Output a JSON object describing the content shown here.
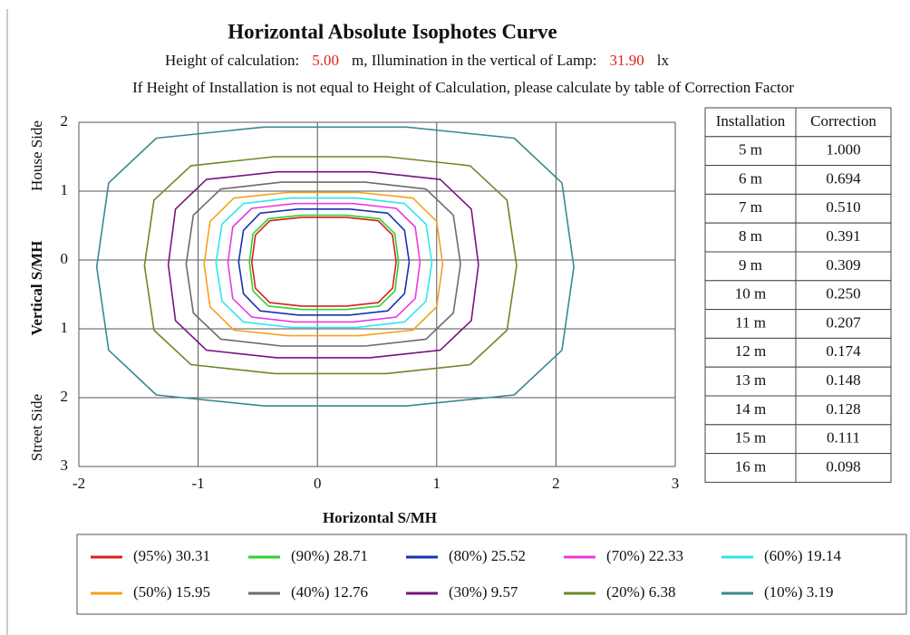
{
  "chart_data": {
    "type": "contour",
    "title": "Horizontal Absolute Isophotes Curve",
    "subtitle_parts": [
      "Height of calculation:",
      "5.00",
      "m, Illumination in the vertical of Lamp:",
      "31.90",
      "lx"
    ],
    "subtitle_highlight_color": "#e0201b",
    "note": "If Height of Installation is not equal to Height of Calculation, please calculate by table of Correction Factor",
    "x_label": "Horizontal S/MH",
    "y_label": "Vertical S/MH",
    "y_side_labels": [
      "House Side",
      "Street Side"
    ],
    "xlim": [
      -2,
      3
    ],
    "xticks": [
      -2,
      -1,
      0,
      1,
      2,
      3
    ],
    "ylim": [
      -3,
      2
    ],
    "yticks": [
      {
        "value": 2,
        "label": "2"
      },
      {
        "value": 1,
        "label": "1"
      },
      {
        "value": 0,
        "label": "0"
      },
      {
        "value": -1,
        "label": "1"
      },
      {
        "value": -2,
        "label": "2"
      },
      {
        "value": -3,
        "label": "3"
      }
    ],
    "grid": true,
    "series": [
      {
        "name": "(95%) 30.31",
        "color": "#d61f1f",
        "x": [
          0.66,
          0.63,
          0.51,
          0.24,
          -0.13,
          -0.4,
          -0.52,
          -0.55,
          -0.52,
          -0.4,
          -0.13,
          0.24,
          0.51,
          0.63,
          0.66
        ],
        "y": [
          -0.03,
          0.36,
          0.57,
          0.62,
          0.62,
          0.57,
          0.36,
          -0.03,
          -0.41,
          -0.62,
          -0.67,
          -0.67,
          -0.62,
          -0.41,
          -0.03
        ]
      },
      {
        "name": "(90%) 28.71",
        "color": "#2fd12f",
        "x": [
          0.68,
          0.65,
          0.52,
          0.24,
          -0.13,
          -0.41,
          -0.54,
          -0.57,
          -0.54,
          -0.41,
          -0.13,
          0.24,
          0.52,
          0.65,
          0.68
        ],
        "y": [
          -0.03,
          0.38,
          0.6,
          0.65,
          0.65,
          0.6,
          0.38,
          -0.03,
          -0.45,
          -0.67,
          -0.72,
          -0.72,
          -0.67,
          -0.45,
          -0.03
        ]
      },
      {
        "name": "(80%) 25.52",
        "color": "#1b2fb5",
        "x": [
          0.77,
          0.73,
          0.59,
          0.27,
          -0.16,
          -0.48,
          -0.62,
          -0.66,
          -0.62,
          -0.48,
          -0.16,
          0.27,
          0.59,
          0.73,
          0.77
        ],
        "y": [
          -0.03,
          0.43,
          0.68,
          0.74,
          0.74,
          0.68,
          0.43,
          -0.03,
          -0.49,
          -0.74,
          -0.8,
          -0.8,
          -0.74,
          -0.49,
          -0.03
        ]
      },
      {
        "name": "(70%) 22.33",
        "color": "#e83be0",
        "x": [
          0.86,
          0.82,
          0.66,
          0.3,
          -0.19,
          -0.55,
          -0.71,
          -0.75,
          -0.71,
          -0.55,
          -0.19,
          0.3,
          0.66,
          0.82,
          0.86
        ],
        "y": [
          -0.04,
          0.48,
          0.75,
          0.82,
          0.82,
          0.75,
          0.48,
          -0.04,
          -0.56,
          -0.83,
          -0.9,
          -0.9,
          -0.83,
          -0.56,
          -0.04
        ]
      },
      {
        "name": "(60%) 19.14",
        "color": "#2fe6ea",
        "x": [
          0.96,
          0.91,
          0.73,
          0.33,
          -0.22,
          -0.62,
          -0.8,
          -0.85,
          -0.8,
          -0.62,
          -0.22,
          0.33,
          0.73,
          0.91,
          0.96
        ],
        "y": [
          -0.04,
          0.52,
          0.82,
          0.9,
          0.9,
          0.82,
          0.52,
          -0.04,
          -0.6,
          -0.9,
          -0.98,
          -0.98,
          -0.9,
          -0.6,
          -0.04
        ]
      },
      {
        "name": "(50%) 15.95",
        "color": "#f5a21b",
        "x": [
          1.05,
          1.0,
          0.8,
          0.35,
          -0.25,
          -0.7,
          -0.9,
          -0.95,
          -0.9,
          -0.7,
          -0.25,
          0.35,
          0.8,
          1.0,
          1.05
        ],
        "y": [
          -0.06,
          0.56,
          0.9,
          0.98,
          0.98,
          0.9,
          0.56,
          -0.06,
          -0.68,
          -1.02,
          -1.1,
          -1.1,
          -1.02,
          -0.68,
          -0.06
        ]
      },
      {
        "name": "(40%) 12.76",
        "color": "#6b6b6b",
        "x": [
          1.2,
          1.14,
          0.91,
          0.4,
          -0.3,
          -0.81,
          -1.04,
          -1.1,
          -1.04,
          -0.81,
          -0.3,
          0.4,
          0.91,
          1.14,
          1.2
        ],
        "y": [
          -0.06,
          0.65,
          1.03,
          1.13,
          1.13,
          1.03,
          0.65,
          -0.06,
          -0.77,
          -1.15,
          -1.25,
          -1.25,
          -1.15,
          -0.77,
          -0.06
        ]
      },
      {
        "name": "(30%) 9.57",
        "color": "#7a127f",
        "x": [
          1.35,
          1.29,
          1.03,
          0.44,
          -0.34,
          -0.93,
          -1.19,
          -1.25,
          -1.19,
          -0.93,
          -0.34,
          0.44,
          1.03,
          1.29,
          1.35
        ],
        "y": [
          -0.07,
          0.74,
          1.17,
          1.28,
          1.28,
          1.17,
          0.74,
          -0.07,
          -0.88,
          -1.31,
          -1.42,
          -1.42,
          -1.31,
          -0.88,
          -0.07
        ]
      },
      {
        "name": "(20%) 6.38",
        "color": "#6b8a24",
        "x": [
          1.67,
          1.59,
          1.28,
          0.58,
          -0.36,
          -1.06,
          -1.37,
          -1.45,
          -1.37,
          -1.06,
          -0.36,
          0.58,
          1.28,
          1.59,
          1.67
        ],
        "y": [
          -0.08,
          0.87,
          1.37,
          1.5,
          1.5,
          1.37,
          0.87,
          -0.08,
          -1.02,
          -1.52,
          -1.65,
          -1.65,
          -1.52,
          -1.02,
          -0.08
        ]
      },
      {
        "name": "(10%) 3.19",
        "color": "#3a8a8c",
        "x": [
          2.15,
          2.05,
          1.65,
          0.75,
          -0.45,
          -1.35,
          -1.75,
          -1.85,
          -1.75,
          -1.35,
          -0.45,
          0.75,
          1.65,
          2.05,
          2.15
        ],
        "y": [
          -0.1,
          1.12,
          1.77,
          1.93,
          1.93,
          1.77,
          1.12,
          -0.1,
          -1.31,
          -1.96,
          -2.12,
          -2.12,
          -1.96,
          -1.31,
          -0.1
        ]
      }
    ],
    "table": {
      "columns": [
        "Installation",
        "Correction"
      ],
      "rows": [
        [
          "5 m",
          "1.000"
        ],
        [
          "6 m",
          "0.694"
        ],
        [
          "7 m",
          "0.510"
        ],
        [
          "8 m",
          "0.391"
        ],
        [
          "9 m",
          "0.309"
        ],
        [
          "10 m",
          "0.250"
        ],
        [
          "11 m",
          "0.207"
        ],
        [
          "12 m",
          "0.174"
        ],
        [
          "13 m",
          "0.148"
        ],
        [
          "14 m",
          "0.128"
        ],
        [
          "15 m",
          "0.111"
        ],
        [
          "16 m",
          "0.098"
        ]
      ]
    }
  }
}
